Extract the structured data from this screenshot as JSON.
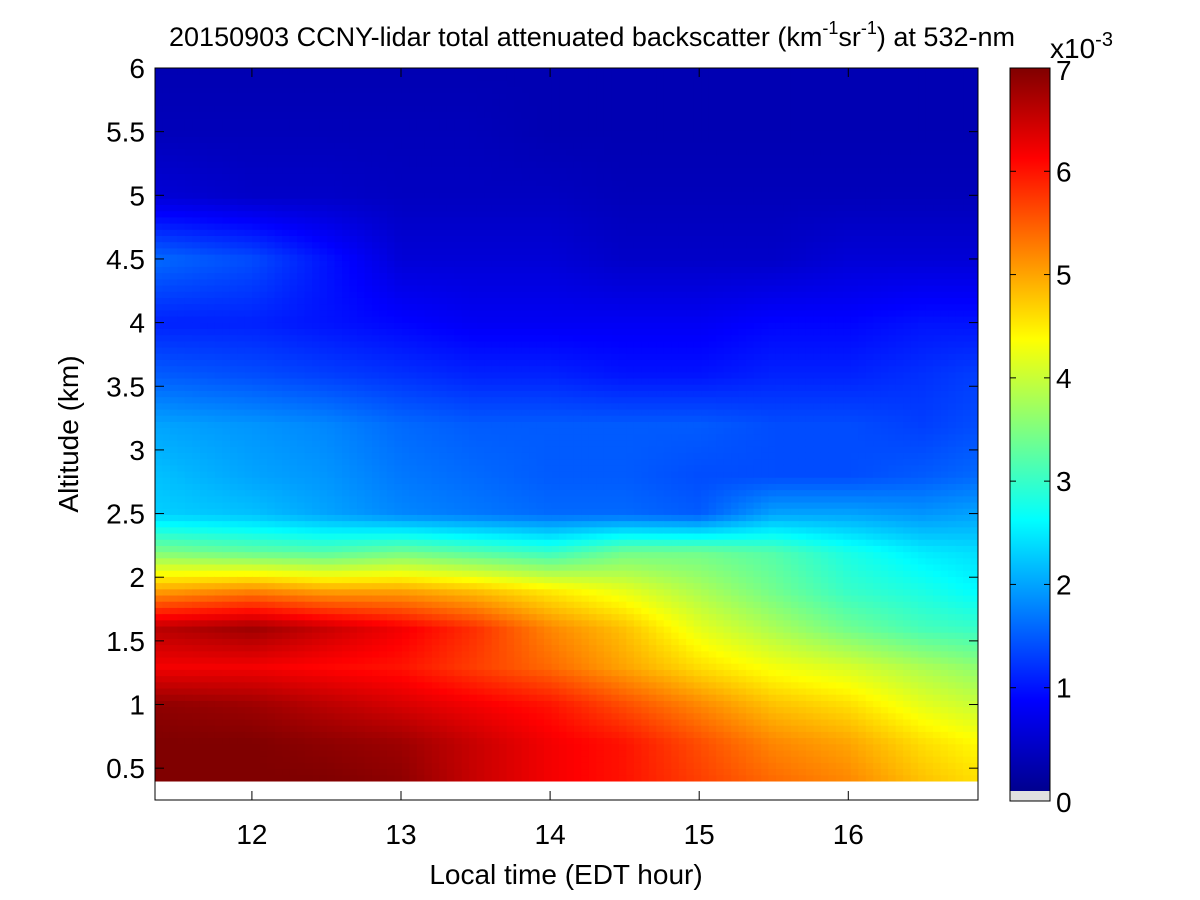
{
  "chart_data": {
    "type": "heatmap",
    "title": {
      "prefix": "20150903 CCNY-lidar total attenuated backscatter (km",
      "sup1": "-1",
      "mid": "sr",
      "sup2": "-1",
      "suffix": ") at 532-nm"
    },
    "xlabel": "Local time (EDT hour)",
    "ylabel": "Altitude (km)",
    "xlim": [
      11.35,
      16.87
    ],
    "ylim": [
      0.25,
      6.0
    ],
    "xticks": [
      {
        "value": 12,
        "label": "12"
      },
      {
        "value": 13,
        "label": "13"
      },
      {
        "value": 14,
        "label": "14"
      },
      {
        "value": 15,
        "label": "15"
      },
      {
        "value": 16,
        "label": "16"
      }
    ],
    "yticks": [
      {
        "value": 0.5,
        "label": "0.5"
      },
      {
        "value": 1,
        "label": "1"
      },
      {
        "value": 1.5,
        "label": "1.5"
      },
      {
        "value": 2,
        "label": "2"
      },
      {
        "value": 2.5,
        "label": "2.5"
      },
      {
        "value": 3,
        "label": "3"
      },
      {
        "value": 3.5,
        "label": "3.5"
      },
      {
        "value": 4,
        "label": "4"
      },
      {
        "value": 4.5,
        "label": "4.5"
      },
      {
        "value": 5,
        "label": "5"
      },
      {
        "value": 5.5,
        "label": "5.5"
      },
      {
        "value": 6,
        "label": "6"
      }
    ],
    "colorbar": {
      "min": 0,
      "max": 7,
      "ticks": [
        {
          "value": 0,
          "label": "0"
        },
        {
          "value": 1,
          "label": "1"
        },
        {
          "value": 2,
          "label": "2"
        },
        {
          "value": 3,
          "label": "3"
        },
        {
          "value": 4,
          "label": "4"
        },
        {
          "value": 5,
          "label": "5"
        },
        {
          "value": 6,
          "label": "6"
        },
        {
          "value": 7,
          "label": "7"
        }
      ],
      "exponent_base": "x10",
      "exponent_power": "-3",
      "colormap": "jet",
      "below_range_color": "#e0e0e0"
    },
    "data_bottom_altitude": 0.4,
    "profile_time_points": [
      11.35,
      12.0,
      12.5,
      13.0,
      13.5,
      14.0,
      14.5,
      15.0,
      15.5,
      16.0,
      16.5,
      16.87
    ],
    "layer_top_altitude": [
      2.45,
      2.4,
      2.35,
      2.3,
      2.35,
      2.25,
      2.25,
      2.35,
      2.55,
      2.65,
      2.7,
      2.8
    ],
    "profile_altitude_points": [
      0.4,
      0.7,
      1.0,
      1.3,
      1.6,
      1.9,
      2.2,
      2.5,
      2.8,
      3.2,
      3.6,
      4.0,
      4.5,
      5.0,
      5.5,
      6.0
    ],
    "backscatter_profiles_x1e-3": [
      [
        7.0,
        7.0,
        6.9,
        6.2,
        6.6,
        5.0,
        3.5,
        2.3,
        2.2,
        2.0,
        1.5,
        1.1,
        1.6,
        0.6,
        0.4,
        0.35
      ],
      [
        7.0,
        7.0,
        6.8,
        6.2,
        6.8,
        5.2,
        3.3,
        2.2,
        2.0,
        1.9,
        1.4,
        1.1,
        1.4,
        0.5,
        0.4,
        0.35
      ],
      [
        7.0,
        6.9,
        6.6,
        6.1,
        6.5,
        5.0,
        3.2,
        2.0,
        1.9,
        1.8,
        1.3,
        1.0,
        1.0,
        0.5,
        0.4,
        0.35
      ],
      [
        6.9,
        6.8,
        6.4,
        6.0,
        6.2,
        5.0,
        3.4,
        1.8,
        1.7,
        1.6,
        1.2,
        0.9,
        0.6,
        0.45,
        0.4,
        0.35
      ],
      [
        6.5,
        6.5,
        6.2,
        5.7,
        5.8,
        4.8,
        3.2,
        1.7,
        1.6,
        1.5,
        1.1,
        0.8,
        0.6,
        0.45,
        0.4,
        0.35
      ],
      [
        6.2,
        6.2,
        6.0,
        5.4,
        5.2,
        4.5,
        3.0,
        1.6,
        1.5,
        1.5,
        1.1,
        0.8,
        0.6,
        0.45,
        0.35,
        0.35
      ],
      [
        6.0,
        6.0,
        5.6,
        5.0,
        4.8,
        4.2,
        3.4,
        1.6,
        1.5,
        1.5,
        1.0,
        0.8,
        0.5,
        0.4,
        0.35,
        0.35
      ],
      [
        5.7,
        5.6,
        5.2,
        4.6,
        4.2,
        3.8,
        3.4,
        1.5,
        1.4,
        1.5,
        1.0,
        0.8,
        0.5,
        0.4,
        0.35,
        0.35
      ],
      [
        5.4,
        5.2,
        4.8,
        4.3,
        3.8,
        3.4,
        3.2,
        2.0,
        1.4,
        1.4,
        1.1,
        0.9,
        0.5,
        0.4,
        0.35,
        0.35
      ],
      [
        5.2,
        5.0,
        4.6,
        4.1,
        3.4,
        3.0,
        2.8,
        2.0,
        1.4,
        1.4,
        1.1,
        0.9,
        0.6,
        0.4,
        0.35,
        0.35
      ],
      [
        4.8,
        4.6,
        4.2,
        3.8,
        3.1,
        2.8,
        2.5,
        1.9,
        1.5,
        1.3,
        1.2,
        1.0,
        0.6,
        0.4,
        0.35,
        0.35
      ],
      [
        4.6,
        4.4,
        4.0,
        3.6,
        3.0,
        2.6,
        2.4,
        2.0,
        1.6,
        1.4,
        1.3,
        1.0,
        0.6,
        0.4,
        0.35,
        0.35
      ]
    ]
  }
}
